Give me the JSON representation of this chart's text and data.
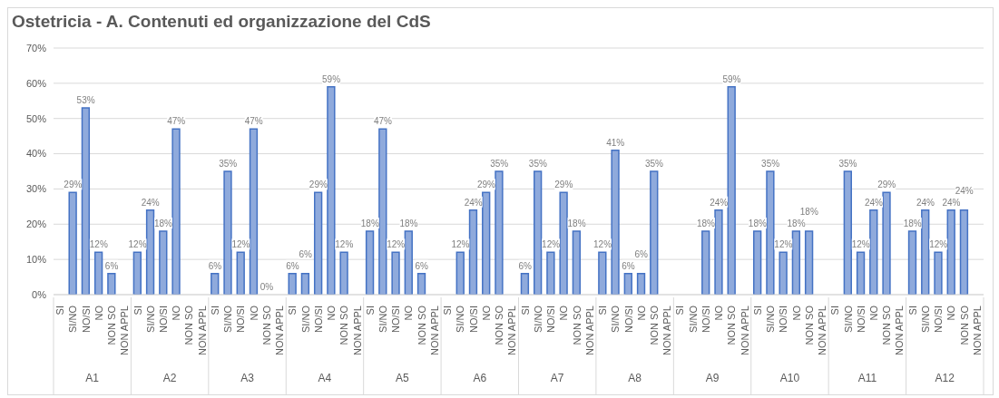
{
  "chart_data": {
    "type": "bar",
    "title": "Ostetricia  - A. Contenuti ed organizzazione del CdS",
    "categories": [
      "SI",
      "SI/NO",
      "NO/SI",
      "NO",
      "NON SO",
      "NON APPL",
      "SI",
      "SI/NO",
      "NO/SI",
      "NO",
      "NON SO",
      "NON APPL",
      "SI",
      "SI/NO",
      "NO/SI",
      "NO",
      "NON SO",
      "NON APPL",
      "SI",
      "SI/NO",
      "NO/SI",
      "NO",
      "NON SO",
      "NON APPL",
      "SI",
      "SI/NO",
      "NO/SI",
      "NO",
      "NON SO",
      "NON APPL",
      "SI",
      "SI/NO",
      "NO/SI",
      "NO",
      "NON SO",
      "NON APPL",
      "SI",
      "SI/NO",
      "NO/SI",
      "NO",
      "NON SO",
      "NON APPL",
      "SI",
      "SI/NO",
      "NO/SI",
      "NO",
      "NON SO",
      "NON APPL",
      "SI",
      "SI/NO",
      "NO/SI",
      "NO",
      "NON SO",
      "NON APPL",
      "SI",
      "SI/NO",
      "NO/SI",
      "NO",
      "NON SO",
      "NON APPL",
      "SI",
      "SI/NO",
      "NO/SI",
      "NO",
      "NON SO",
      "NON APPL",
      "SI",
      "SI/NO",
      "NO/SI",
      "NO",
      "NON SO",
      "NON APPL"
    ],
    "values": [
      null,
      29,
      53,
      12,
      6,
      null,
      12,
      24,
      18,
      47,
      null,
      null,
      6,
      35,
      12,
      47,
      0,
      null,
      6,
      6,
      29,
      59,
      12,
      null,
      18,
      47,
      12,
      18,
      6,
      null,
      null,
      12,
      24,
      29,
      35,
      null,
      6,
      35,
      12,
      29,
      18,
      null,
      12,
      41,
      6,
      6,
      35,
      null,
      null,
      null,
      18,
      24,
      59,
      null,
      18,
      35,
      12,
      18,
      18,
      null,
      null,
      35,
      12,
      24,
      29,
      null,
      18,
      24,
      12,
      24,
      24,
      null
    ],
    "value_labels": [
      null,
      "29%",
      "53%",
      "12%",
      "6%",
      null,
      "12%",
      "24%",
      "18%",
      "47%",
      null,
      null,
      "6%",
      "35%",
      "12%",
      "47%",
      "0%",
      null,
      "6%",
      "6%",
      "29%",
      "59%",
      "12%",
      null,
      "18%",
      "47%",
      "12%",
      "18%",
      "6%",
      null,
      null,
      "12%",
      "24%",
      "29%",
      "35%",
      null,
      "6%",
      "35%",
      "12%",
      "29%",
      "18%",
      null,
      "12%",
      "41%",
      "6%",
      "6%",
      "35%",
      null,
      null,
      null,
      "18%",
      "24%",
      "59%",
      null,
      "18%",
      "35%",
      "12%",
      "18%",
      "18%",
      null,
      null,
      "35%",
      "12%",
      "24%",
      "29%",
      null,
      "18%",
      "24%",
      "12%",
      "24%",
      "24%",
      null
    ],
    "annotations": [
      "A1",
      "A2",
      "A3",
      "A4",
      "A5",
      "A6",
      "A7",
      "A8",
      "A9",
      "A10",
      "A11",
      "A12"
    ],
    "color": "#8faadc",
    "ylim": [
      0,
      70
    ],
    "yticks": [
      {
        "value": 0,
        "label": "0%"
      },
      {
        "value": 10,
        "label": "10%"
      },
      {
        "value": 20,
        "label": "20%"
      },
      {
        "value": 30,
        "label": "30%"
      },
      {
        "value": 40,
        "label": "40%"
      },
      {
        "value": 50,
        "label": "50%"
      },
      {
        "value": 60,
        "label": "60%"
      },
      {
        "value": 70,
        "label": "70%"
      }
    ],
    "grid": "y",
    "legend": false
  }
}
